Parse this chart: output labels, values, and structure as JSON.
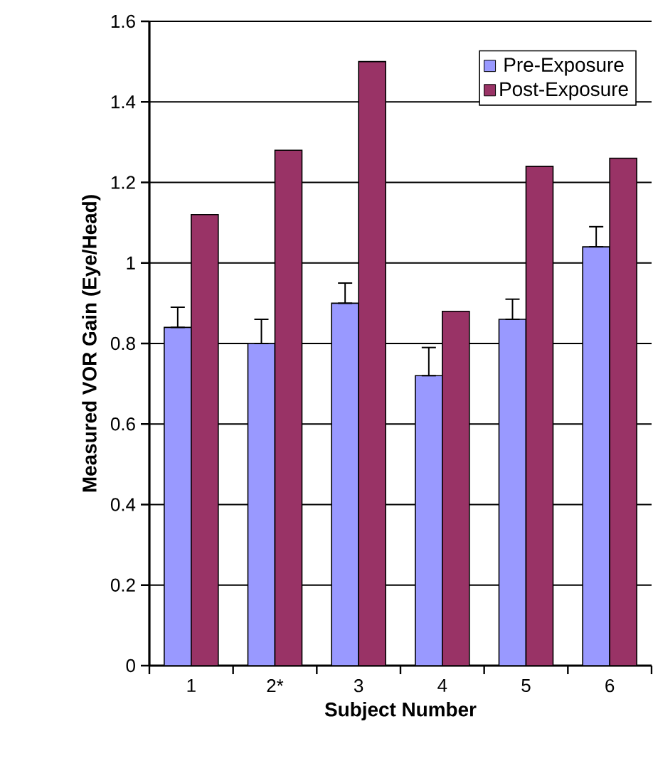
{
  "chart_data": {
    "type": "bar",
    "xlabel": "Subject Number",
    "ylabel": "Measured VOR Gain (Eye/Head)",
    "categories": [
      "1",
      "2*",
      "3",
      "4",
      "5",
      "6"
    ],
    "series": [
      {
        "name": "Pre-Exposure",
        "color": "#9999ff",
        "values": [
          0.84,
          0.8,
          0.9,
          0.72,
          0.86,
          1.04
        ],
        "errors": [
          [
            0.84,
            0.89
          ],
          [
            0.8,
            0.86
          ],
          [
            0.9,
            0.95
          ],
          [
            0.72,
            0.79
          ],
          [
            0.86,
            0.91
          ],
          [
            1.04,
            1.09
          ]
        ]
      },
      {
        "name": "Post-Exposure",
        "color": "#993366",
        "values": [
          1.12,
          1.28,
          1.5,
          0.88,
          1.24,
          1.26
        ]
      }
    ],
    "ylim": [
      0,
      1.6
    ],
    "yticks": [
      0,
      0.2,
      0.4,
      0.6,
      0.8,
      1,
      1.2,
      1.4,
      1.6
    ],
    "grid": "y",
    "legend": "top right"
  }
}
